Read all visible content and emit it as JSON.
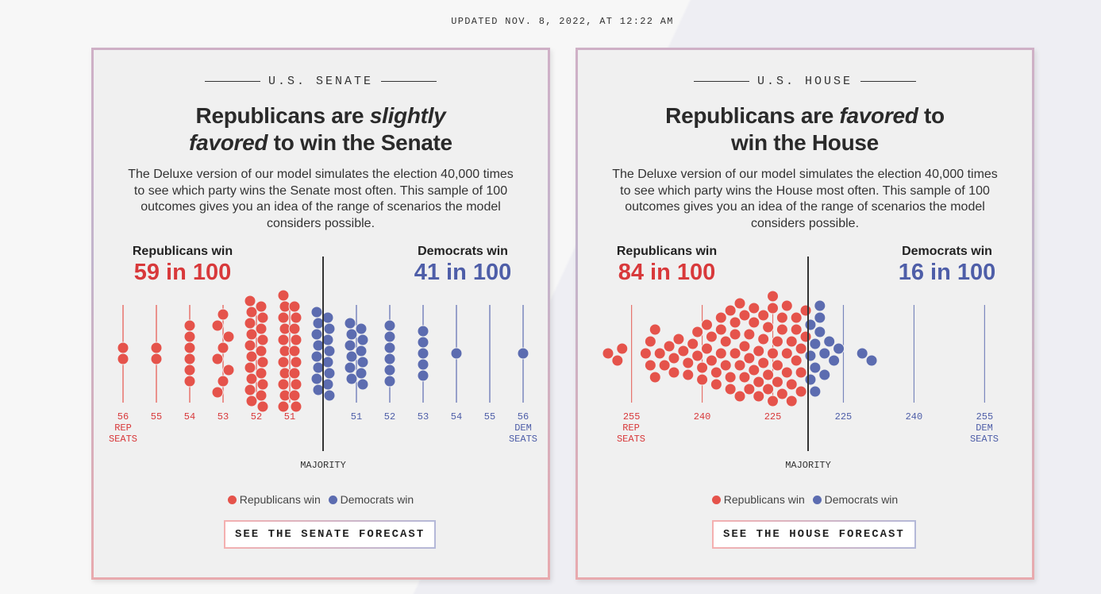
{
  "updated": "UPDATED NOV. 8, 2022, AT 12:22 AM",
  "colors": {
    "rep": "#e5534b",
    "dem": "#5c6cb0",
    "rep_text": "#d8393b",
    "dem_text": "#4e5ea8",
    "majority": "#333333"
  },
  "senate": {
    "section": "U.S. SENATE",
    "title": {
      "l1a": "Republicans are ",
      "l1b": "slightly",
      "l2a": "favored",
      "l2b": " to win the Senate"
    },
    "description": "The Deluxe version of our model simulates the election 40,000 times to see which party wins the Senate most often. This sample of 100 outcomes gives you an idea of the range of scenarios the model considers possible.",
    "rep_label": "Republicans win",
    "rep_odds": "59 in 100",
    "dem_label": "Democrats win",
    "dem_odds": "41 in 100",
    "majority_label": "MAJORITY",
    "rep_axis_note": [
      "REP",
      "SEATS"
    ],
    "dem_axis_note": [
      "DEM",
      "SEATS"
    ],
    "legend": {
      "rep": "Republicans win",
      "dem": "Democrats win"
    },
    "button": "SEE THE SENATE FORECAST"
  },
  "house": {
    "section": "U.S. HOUSE",
    "title": {
      "l1a": "Republicans are ",
      "l1b": "favored",
      "l1c": " to",
      "l2": "win the House"
    },
    "description": "The Deluxe version of our model simulates the election 40,000 times to see which party wins the House most often. This sample of 100 outcomes gives you an idea of the range of scenarios the model considers possible.",
    "rep_label": "Republicans win",
    "rep_odds": "84 in 100",
    "dem_label": "Democrats win",
    "dem_odds": "16 in 100",
    "majority_label": "MAJORITY",
    "rep_axis_note": [
      "REP",
      "SEATS"
    ],
    "dem_axis_note": [
      "DEM",
      "SEATS"
    ],
    "legend": {
      "rep": "Republicans win",
      "dem": "Democrats win"
    },
    "button": "SEE THE HOUSE FORECAST"
  },
  "chart_data": [
    {
      "type": "scatter",
      "chamber": "Senate",
      "buckets": [
        {
          "label": "56",
          "party": "R",
          "count": 2
        },
        {
          "label": "55",
          "party": "R",
          "count": 2
        },
        {
          "label": "54",
          "party": "R",
          "count": 6
        },
        {
          "label": "53",
          "party": "R",
          "count": 8
        },
        {
          "label": "52",
          "party": "R",
          "count": 20
        },
        {
          "label": "51",
          "party": "R",
          "count": 21
        },
        {
          "label": "",
          "party": "D",
          "count": 16
        },
        {
          "label": "51",
          "party": "D",
          "count": 12
        },
        {
          "label": "52",
          "party": "D",
          "count": 6
        },
        {
          "label": "53",
          "party": "D",
          "count": 5
        },
        {
          "label": "54",
          "party": "D",
          "count": 1
        },
        {
          "label": "55",
          "party": "D",
          "count": 0
        },
        {
          "label": "56",
          "party": "D",
          "count": 1
        }
      ]
    },
    {
      "type": "scatter",
      "chamber": "House",
      "ticks": [
        {
          "label": "255",
          "party": "R",
          "rep_seats": 255
        },
        {
          "label": "240",
          "party": "R",
          "rep_seats": 240
        },
        {
          "label": "225",
          "party": "R",
          "rep_seats": 225
        },
        {
          "label": "225",
          "party": "D",
          "rep_seats": 210
        },
        {
          "label": "240",
          "party": "D",
          "rep_seats": 195
        },
        {
          "label": "255",
          "party": "D",
          "rep_seats": 180
        }
      ],
      "rep_seat_outcomes": [
        260,
        258,
        257,
        252,
        251,
        251,
        250,
        250,
        249,
        248,
        247,
        246,
        246,
        245,
        244,
        243,
        243,
        242,
        241,
        241,
        240,
        240,
        239,
        239,
        238,
        238,
        237,
        237,
        236,
        236,
        236,
        235,
        235,
        234,
        234,
        234,
        233,
        233,
        233,
        232,
        232,
        232,
        231,
        231,
        231,
        230,
        230,
        230,
        229,
        229,
        229,
        228,
        228,
        228,
        227,
        227,
        227,
        226,
        226,
        226,
        225,
        225,
        225,
        225,
        224,
        224,
        224,
        223,
        223,
        223,
        222,
        222,
        222,
        221,
        221,
        221,
        220,
        220,
        220,
        219,
        219,
        219,
        218,
        218,
        217,
        217,
        217,
        216,
        216,
        216,
        215,
        215,
        215,
        214,
        214,
        213,
        212,
        211,
        206,
        204
      ]
    }
  ]
}
